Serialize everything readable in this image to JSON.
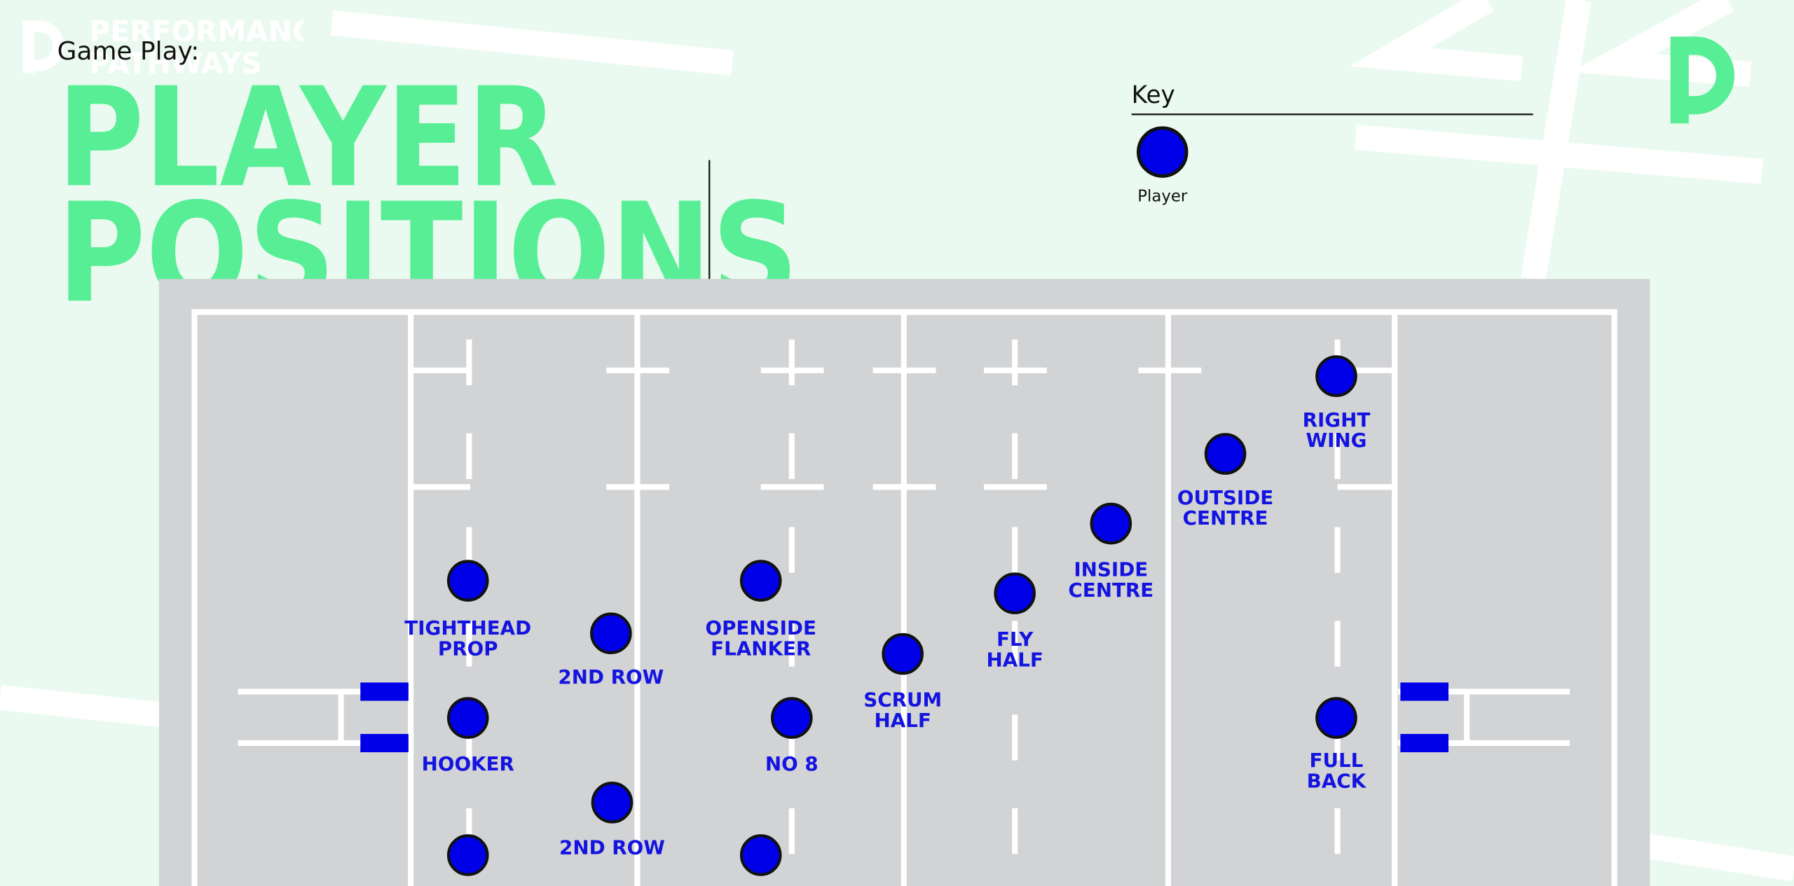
{
  "logo": {
    "line1": "PERFORMANCE",
    "line2": "PATHWAYS"
  },
  "subtitle": "Game Play:",
  "title": {
    "line1": "PLAYER",
    "line2": "POSITIONS"
  },
  "key": {
    "heading": "Key",
    "item": "Player"
  },
  "players": [
    {
      "lines": [
        "TIGHTHEAD",
        "PROP"
      ]
    },
    {
      "lines": [
        "2ND ROW"
      ]
    },
    {
      "lines": [
        "OPENSIDE",
        "FLANKER"
      ]
    },
    {
      "lines": [
        "HOOKER"
      ]
    },
    {
      "lines": [
        "NO 8"
      ]
    },
    {
      "lines": [
        "SCRUM",
        "HALF"
      ]
    },
    {
      "lines": [
        "FLY",
        "HALF"
      ]
    },
    {
      "lines": [
        "INSIDE",
        "CENTRE"
      ]
    },
    {
      "lines": [
        "OUTSIDE",
        "CENTRE"
      ]
    },
    {
      "lines": [
        "RIGHT",
        "WING"
      ]
    },
    {
      "lines": [
        "FULL",
        "BACK"
      ]
    },
    {
      "lines": [
        "2ND ROW"
      ]
    }
  ]
}
